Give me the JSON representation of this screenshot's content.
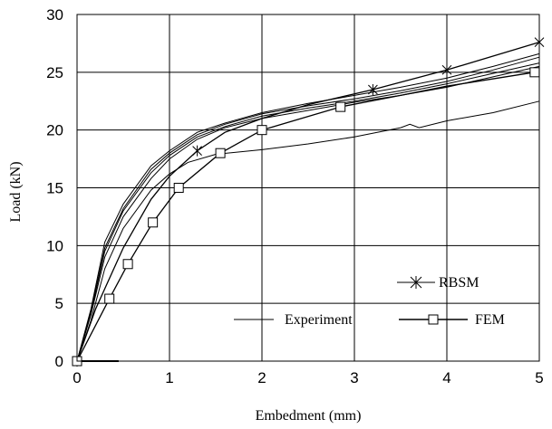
{
  "chart_data": {
    "type": "line",
    "title": "",
    "xlabel": "Embedment (mm)",
    "ylabel": "Load (kN)",
    "xlim": [
      0,
      5
    ],
    "ylim": [
      0,
      30
    ],
    "xticks": [
      "0",
      "1",
      "2",
      "3",
      "4",
      "5"
    ],
    "yticks": [
      "0",
      "5",
      "10",
      "15",
      "20",
      "25",
      "30"
    ],
    "grid": true,
    "legend": [
      {
        "label": "RBSM",
        "marker": "asterisk"
      },
      {
        "label": "Experiment",
        "marker": "none"
      },
      {
        "label": "FEM",
        "marker": "square"
      }
    ],
    "series": [
      {
        "name": "RBSM",
        "marker": "asterisk",
        "x": [
          0,
          0.2,
          0.5,
          0.8,
          1.0,
          1.3,
          1.6,
          2.0,
          2.5,
          3.2,
          4.0,
          5.0
        ],
        "y": [
          0,
          4.5,
          9.8,
          14.0,
          16.0,
          18.2,
          19.8,
          21.0,
          22.2,
          23.5,
          25.2,
          27.6
        ],
        "marker_x": [
          0,
          1.3,
          3.2,
          4.0,
          5.0
        ],
        "marker_y": [
          0,
          18.2,
          23.5,
          25.2,
          27.6
        ]
      },
      {
        "name": "FEM",
        "marker": "square",
        "x": [
          0,
          0.35,
          0.55,
          0.82,
          1.1,
          1.55,
          2.0,
          2.85,
          3.5,
          4.0,
          4.95
        ],
        "y": [
          0,
          5.4,
          8.4,
          12.0,
          15.0,
          18.0,
          20.0,
          22.0,
          23.0,
          23.8,
          25.0
        ],
        "marker_x": [
          0,
          0.35,
          0.55,
          0.82,
          1.1,
          1.55,
          2.0,
          2.85,
          4.95
        ],
        "marker_y": [
          0,
          5.4,
          8.4,
          12.0,
          15.0,
          18.0,
          20.0,
          22.0,
          25.0
        ]
      },
      {
        "name": "Experiment",
        "marker": "none",
        "curves": [
          {
            "x": [
              0,
              0.15,
              0.3,
              0.5,
              0.8,
              1.0,
              1.2,
              1.5,
              2.0,
              2.5,
              3.0,
              3.5,
              3.6,
              3.7,
              4.0,
              4.5,
              5.0
            ],
            "y": [
              0,
              3.5,
              8.0,
              11.5,
              14.8,
              16.2,
              17.2,
              17.9,
              18.3,
              18.8,
              19.4,
              20.2,
              20.5,
              20.2,
              20.8,
              21.5,
              22.5
            ]
          },
          {
            "x": [
              0,
              0.15,
              0.3,
              0.5,
              0.8,
              1.0,
              1.3,
              1.6,
              2.0,
              2.5,
              3.0,
              3.5,
              4.0,
              4.5,
              5.0
            ],
            "y": [
              0,
              4.0,
              9.0,
              12.5,
              15.8,
              17.5,
              19.2,
              20.2,
              21.0,
              21.7,
              22.4,
              23.0,
              23.7,
              24.6,
              25.5
            ]
          },
          {
            "x": [
              0,
              0.15,
              0.3,
              0.5,
              0.8,
              1.0,
              1.3,
              1.6,
              2.0,
              2.5,
              3.0,
              3.5,
              4.0,
              4.5,
              5.0
            ],
            "y": [
              0,
              4.2,
              9.5,
              13.0,
              16.3,
              17.8,
              19.4,
              20.3,
              21.2,
              21.9,
              22.5,
              23.2,
              24.0,
              24.9,
              25.8
            ]
          },
          {
            "x": [
              0,
              0.15,
              0.3,
              0.5,
              0.8,
              1.0,
              1.3,
              1.6,
              2.0,
              2.5,
              3.0,
              3.5,
              4.0,
              4.5,
              5.0
            ],
            "y": [
              0,
              4.3,
              9.8,
              13.2,
              16.6,
              18.0,
              19.6,
              20.5,
              21.4,
              22.1,
              22.7,
              23.4,
              24.2,
              25.2,
              26.3
            ]
          },
          {
            "x": [
              0,
              0.15,
              0.3,
              0.5,
              0.8,
              1.0,
              1.3,
              1.6,
              2.0,
              2.5,
              3.0,
              3.5,
              4.0,
              4.5,
              5.0
            ],
            "y": [
              0,
              4.5,
              10.3,
              13.6,
              16.9,
              18.2,
              19.8,
              20.6,
              21.5,
              22.3,
              23.0,
              23.7,
              24.5,
              25.5,
              26.6
            ]
          }
        ]
      }
    ]
  }
}
